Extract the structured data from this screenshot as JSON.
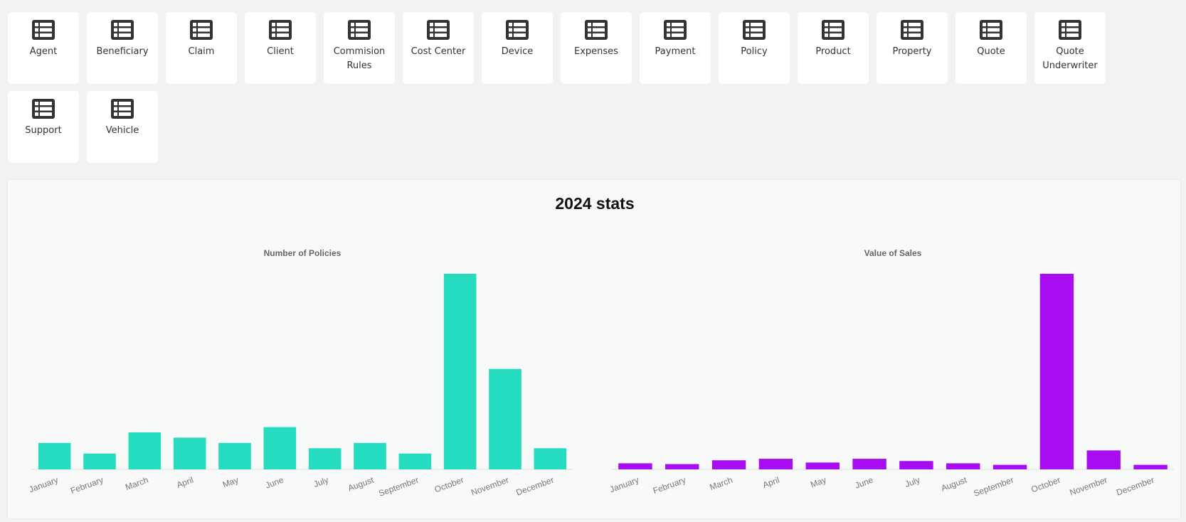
{
  "tiles": [
    "Agent",
    "Beneficiary",
    "Claim",
    "Client",
    "Commision Rules",
    "Cost Center",
    "Device",
    "Expenses",
    "Payment",
    "Policy",
    "Product",
    "Property",
    "Quote",
    "Quote Underwriter",
    "Support",
    "Vehicle"
  ],
  "stats_title": "2024 stats",
  "chart_data": [
    {
      "type": "bar",
      "title": "Number of Policies",
      "categories": [
        "January",
        "February",
        "March",
        "April",
        "May",
        "June",
        "July",
        "August",
        "September",
        "October",
        "November",
        "December"
      ],
      "values": [
        5,
        3,
        7,
        6,
        5,
        8,
        4,
        5,
        3,
        37,
        19,
        4
      ],
      "color": "#26dcc0"
    },
    {
      "type": "bar",
      "title": "Value of Sales",
      "categories": [
        "January",
        "February",
        "March",
        "April",
        "May",
        "June",
        "July",
        "August",
        "September",
        "October",
        "November",
        "December"
      ],
      "values": [
        8,
        7,
        12,
        14,
        9,
        14,
        11,
        8,
        6,
        258,
        25,
        6
      ],
      "color": "#a80cf0"
    }
  ]
}
